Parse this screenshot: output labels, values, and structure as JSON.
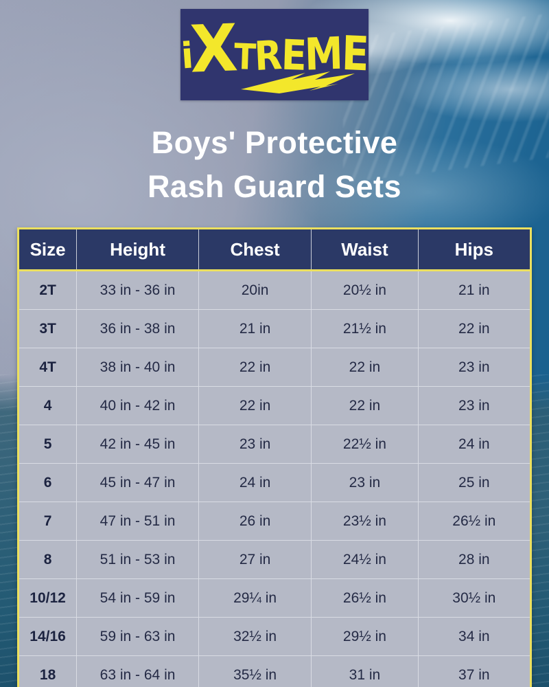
{
  "logo": {
    "part_i": "i",
    "part_x": "X",
    "part_rest": "TREME",
    "bg_color": "#30356e",
    "text_color": "#f3e72b"
  },
  "title": {
    "line1": "Boys' Protective",
    "line2": "Rash Guard Sets"
  },
  "size_chart": {
    "headers": [
      "Size",
      "Height",
      "Chest",
      "Waist",
      "Hips"
    ],
    "rows": [
      [
        "2T",
        "33 in - 36 in",
        "20in",
        "20½ in",
        "21 in"
      ],
      [
        "3T",
        "36 in - 38 in",
        "21 in",
        "21½ in",
        "22 in"
      ],
      [
        "4T",
        "38 in - 40 in",
        "22 in",
        "22 in",
        "23 in"
      ],
      [
        "4",
        "40 in - 42 in",
        "22 in",
        "22 in",
        "23 in"
      ],
      [
        "5",
        "42 in - 45 in",
        "23 in",
        "22½ in",
        "24 in"
      ],
      [
        "6",
        "45 in - 47 in",
        "24 in",
        "23 in",
        "25 in"
      ],
      [
        "7",
        "47 in - 51 in",
        "26 in",
        "23½ in",
        "26½ in"
      ],
      [
        "8",
        "51 in - 53 in",
        "27 in",
        "24½ in",
        "28 in"
      ],
      [
        "10/12",
        "54 in - 59 in",
        "29¼ in",
        "26½ in",
        "30½ in"
      ],
      [
        "14/16",
        "59 in - 63 in",
        "32½ in",
        "29½ in",
        "34 in"
      ],
      [
        "18",
        "63 in - 64 in",
        "35½ in",
        "31 in",
        "37 in"
      ]
    ],
    "border_color": "#ece05e",
    "header_bg": "#2b3966",
    "header_text_color": "#ffffff",
    "row_bg": "#b5b9c6",
    "row_text_color": "#242a45"
  }
}
